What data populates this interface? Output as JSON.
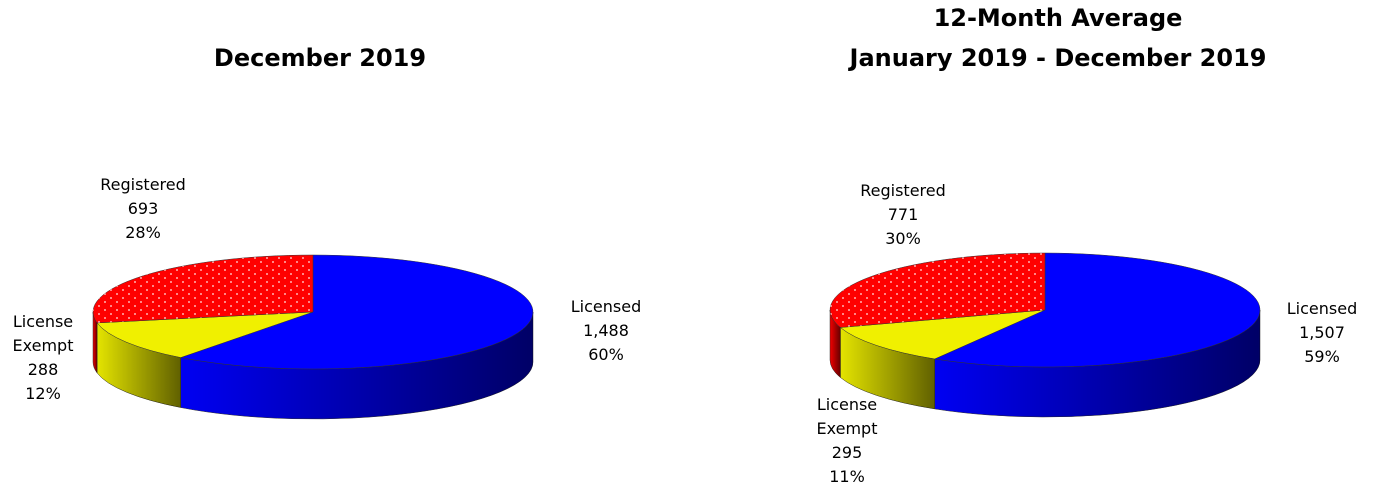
{
  "chart_data": [
    {
      "type": "pie",
      "title": [
        "December 2019"
      ],
      "categories": [
        "Licensed",
        "License Exempt",
        "Registered"
      ],
      "values": [
        1488,
        288,
        693
      ],
      "value_labels": [
        "1,488",
        "288",
        "693"
      ],
      "percents": [
        60,
        12,
        28
      ],
      "percent_labels": [
        "60%",
        "12%",
        "28%"
      ],
      "colors": [
        "#0000ff",
        "#f0f000",
        "#ff0000"
      ]
    },
    {
      "type": "pie",
      "title": [
        "12-Month Average",
        "January 2019 - December 2019"
      ],
      "categories": [
        "Licensed",
        "License Exempt",
        "Registered"
      ],
      "values": [
        1507,
        295,
        771
      ],
      "value_labels": [
        "1,507",
        "295",
        "771"
      ],
      "percents": [
        59,
        11,
        30
      ],
      "percent_labels": [
        "59%",
        "11%",
        "30%"
      ],
      "colors": [
        "#0000ff",
        "#f0f000",
        "#ff0000"
      ]
    }
  ]
}
